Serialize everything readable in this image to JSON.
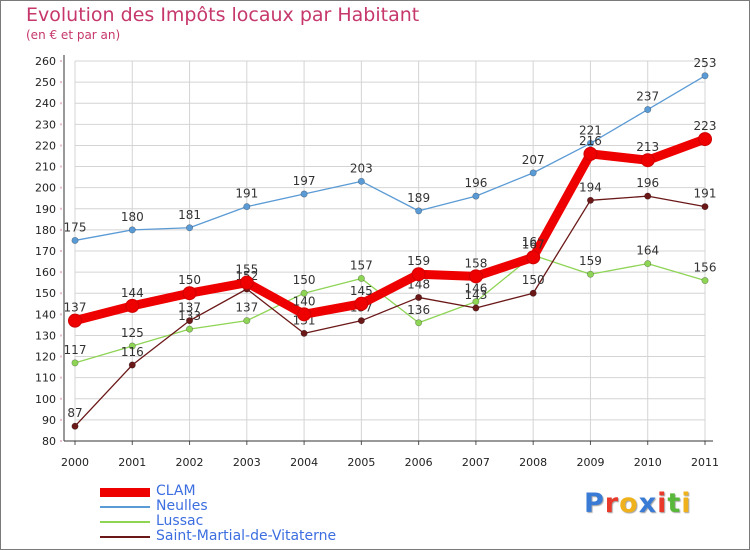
{
  "title": "Evolution des Impôts locaux par Habitant",
  "subtitle": "(en € et par an)",
  "logo": {
    "text": "Proxiti",
    "letter_colors": [
      "#3a7bd5",
      "#e8392a",
      "#f0b21c",
      "#3a7bd5",
      "#e8392a",
      "#59b83a",
      "#f0b21c"
    ]
  },
  "chart_data": {
    "type": "line",
    "title": "Evolution des Impôts locaux par Habitant",
    "subtitle": "(en € et par an)",
    "xlabel": "",
    "ylabel": "",
    "x": [
      "2000",
      "2001",
      "2002",
      "2003",
      "2004",
      "2005",
      "2006",
      "2007",
      "2008",
      "2009",
      "2010",
      "2011"
    ],
    "ylim": [
      80,
      260
    ],
    "yticks": [
      80,
      90,
      100,
      110,
      120,
      130,
      140,
      150,
      160,
      170,
      180,
      190,
      200,
      210,
      220,
      230,
      240,
      250,
      260
    ],
    "grid": true,
    "legend_position": "bottom-left",
    "series": [
      {
        "name": "Neulles",
        "color": "#5b9bd5",
        "values": [
          175,
          180,
          181,
          191,
          197,
          203,
          189,
          196,
          207,
          221,
          237,
          253
        ],
        "labels": [
          "175",
          "180",
          "181",
          "191",
          "197",
          "203",
          "189",
          "196",
          "207",
          "221",
          "237",
          "253"
        ]
      },
      {
        "name": "Lussac",
        "color": "#8ed455",
        "values": [
          117,
          125,
          133,
          137,
          150,
          157,
          136,
          146,
          168,
          159,
          164,
          156
        ],
        "labels": [
          "117",
          "125",
          "133",
          "137",
          "150",
          "157",
          "136",
          "146",
          "168",
          "159",
          "164",
          "156"
        ]
      },
      {
        "name": "Saint-Martial-de-Vitaterne",
        "color": "#6b1818",
        "values": [
          87,
          116,
          137,
          152,
          131,
          137,
          148,
          143,
          150,
          194,
          196,
          191
        ],
        "labels": [
          "87",
          "116",
          "137",
          "152",
          "131",
          "137",
          "148",
          "143",
          "150",
          "194",
          "196",
          "191"
        ]
      },
      {
        "name": "CLAM",
        "color": "#ee0000",
        "values": [
          137,
          144,
          150,
          155,
          140,
          145,
          159,
          158,
          167,
          216,
          213,
          223
        ],
        "labels": [
          "137",
          "144",
          "150",
          "155",
          "140",
          "145",
          "159",
          "158",
          "167",
          "216",
          "213",
          "223"
        ]
      }
    ]
  }
}
